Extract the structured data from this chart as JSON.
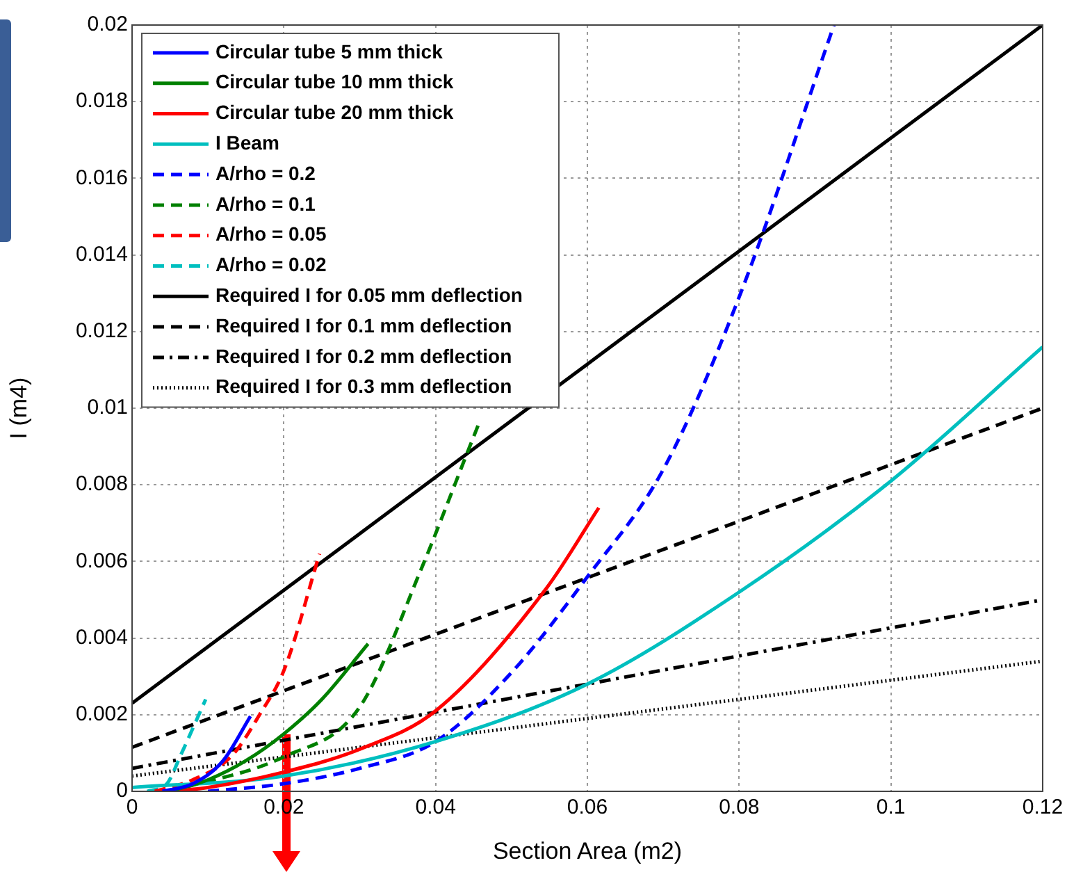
{
  "chart_data": {
    "type": "line",
    "xlabel": "Section Area (m2)",
    "ylabel": "I (m4)",
    "xlim": [
      0,
      0.12
    ],
    "ylim": [
      0,
      0.02
    ],
    "xticks": [
      0,
      0.02,
      0.04,
      0.06,
      0.08,
      0.1,
      0.12
    ],
    "yticks": [
      0,
      0.002,
      0.004,
      0.006,
      0.008,
      0.01,
      0.012,
      0.014,
      0.016,
      0.018,
      0.02
    ],
    "grid": true,
    "legend": "top left",
    "marker": "none",
    "series": [
      {
        "name": "Circular tube 5 mm thick",
        "color": "#0000ff",
        "line_style": "solid",
        "x": [
          0.004,
          0.008,
          0.012,
          0.0156
        ],
        "values": [
          0,
          0.0002,
          0.0008,
          0.00196
        ]
      },
      {
        "name": "Circular tube 10 mm thick",
        "color": "#008000",
        "line_style": "solid",
        "x": [
          0.005,
          0.01,
          0.015,
          0.02,
          0.025,
          0.0311
        ],
        "values": [
          0,
          0.0003,
          0.0008,
          0.0015,
          0.0024,
          0.00385
        ]
      },
      {
        "name": "Circular tube 20 mm thick",
        "color": "#ff0000",
        "line_style": "solid",
        "x": [
          0.005,
          0.01,
          0.02,
          0.03,
          0.04,
          0.0546,
          0.0615
        ],
        "values": [
          0,
          0.0001,
          0.0005,
          0.0011,
          0.0021,
          0.0053,
          0.0074
        ]
      },
      {
        "name": "I Beam",
        "color": "#00bfbf",
        "line_style": "solid",
        "x": [
          0,
          0.02,
          0.04,
          0.06,
          0.08,
          0.1,
          0.12
        ],
        "values": [
          0.0001,
          0.0004,
          0.0013,
          0.0028,
          0.0052,
          0.0081,
          0.0116
        ]
      },
      {
        "name": "A/rho = 0.2",
        "color": "#0000ff",
        "line_style": "dashed",
        "x": [
          0.01,
          0.02,
          0.03,
          0.04,
          0.05,
          0.06,
          0.07,
          0.08,
          0.0925
        ],
        "values": [
          0,
          0.0002,
          0.0006,
          0.0013,
          0.0031,
          0.0056,
          0.0084,
          0.0129,
          0.02
        ]
      },
      {
        "name": "A/rho = 0.1",
        "color": "#008000",
        "line_style": "dashed",
        "x": [
          0.005,
          0.02,
          0.03,
          0.0381,
          0.0443,
          0.0459
        ],
        "values": [
          0,
          0.0009,
          0.0022,
          0.0058,
          0.0089,
          0.0097
        ]
      },
      {
        "name": "A/rho = 0.05",
        "color": "#ff0000",
        "line_style": "dashed",
        "x": [
          0.003,
          0.008,
          0.0132,
          0.0168,
          0.0201,
          0.0247
        ],
        "values": [
          0,
          0.0003,
          0.00094,
          0.002,
          0.0032,
          0.0062
        ]
      },
      {
        "name": "A/rho = 0.02",
        "color": "#00bfbf",
        "line_style": "dashed",
        "x": [
          0.002,
          0.0046,
          0.0064,
          0.0097
        ],
        "values": [
          0,
          0.0002,
          0.00094,
          0.0024
        ]
      },
      {
        "name": "Required I for 0.05 mm deflection",
        "color": "#000000",
        "line_style": "solid",
        "x": [
          0,
          0.12
        ],
        "values": [
          0.0023,
          0.02
        ]
      },
      {
        "name": "Required I for 0.1 mm deflection",
        "color": "#000000",
        "line_style": "dashed",
        "x": [
          0,
          0.12
        ],
        "values": [
          0.00115,
          0.01
        ]
      },
      {
        "name": "Required I for 0.2 mm deflection",
        "color": "#000000",
        "line_style": "dashdot",
        "x": [
          0,
          0.12
        ],
        "values": [
          0.0006,
          0.005
        ]
      },
      {
        "name": "Required I for 0.3 mm deflection",
        "color": "#000000",
        "line_style": "dotted",
        "x": [
          0,
          0.12
        ],
        "values": [
          0.0004,
          0.0034
        ]
      }
    ]
  }
}
